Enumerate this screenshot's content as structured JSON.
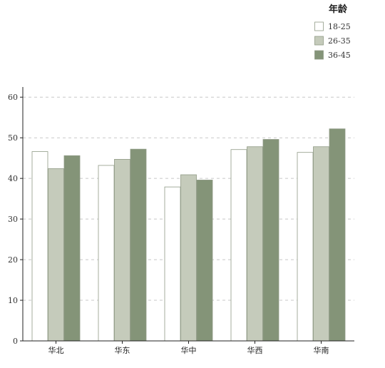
{
  "chart_data": {
    "type": "bar",
    "categories": [
      "华北",
      "华东",
      "华中",
      "华西",
      "华南"
    ],
    "series": [
      {
        "name": "18-25",
        "color": "#ffffff",
        "values": [
          46.6,
          43.2,
          37.9,
          47.1,
          46.4
        ]
      },
      {
        "name": "26-35",
        "color": "#c5cbbb",
        "values": [
          42.4,
          44.7,
          40.9,
          47.8,
          47.8
        ]
      },
      {
        "name": "36-45",
        "color": "#849478",
        "values": [
          45.6,
          47.2,
          39.6,
          49.6,
          52.2
        ]
      }
    ],
    "legend_title": "年龄",
    "legend_position": "top-right",
    "yticks": [
      0,
      10,
      20,
      30,
      40,
      50,
      60
    ],
    "ylim": [
      0,
      62.5
    ],
    "grid": "horizontal dashed",
    "bar_stroke": "#8f9a85"
  }
}
